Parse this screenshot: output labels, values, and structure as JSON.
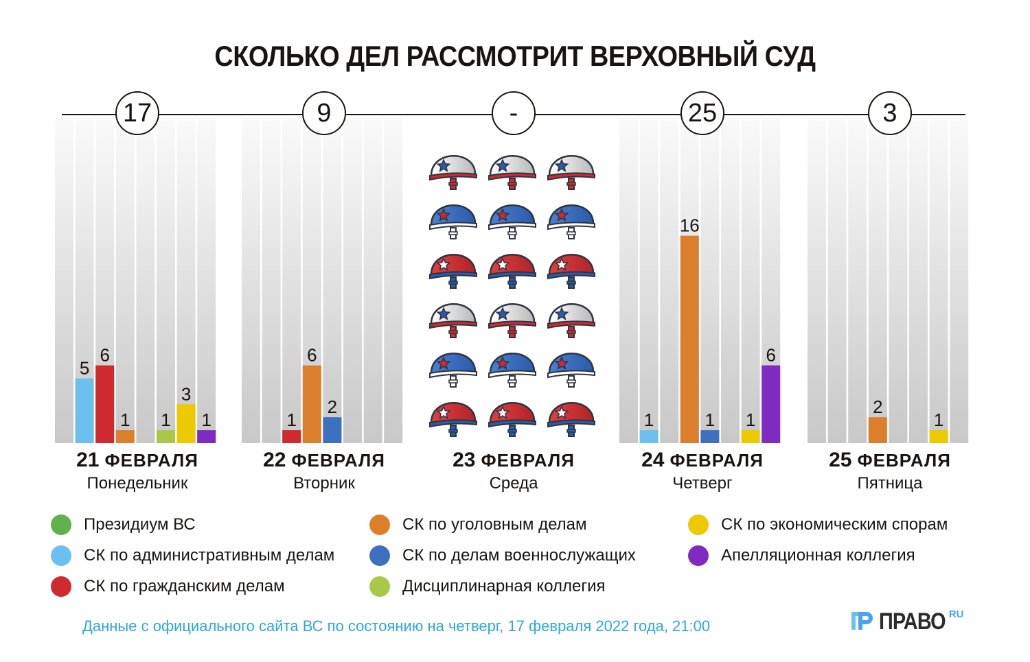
{
  "title": "СКОЛЬКО ДЕЛ РАССМОТРИТ ВЕРХОВНЫЙ СУД",
  "legend": [
    {
      "label": "Президиум ВС",
      "color": "#63b04f"
    },
    {
      "label": "СК по административным делам",
      "color": "#6cc0ef"
    },
    {
      "label": "СК по гражданским делам",
      "color": "#cf2a30"
    },
    {
      "label": "СК по уголовным делам",
      "color": "#dc7f2c"
    },
    {
      "label": "СК по делам военнослужащих",
      "color": "#3e70c0"
    },
    {
      "label": "Дисциплинарная коллегия",
      "color": "#a9c84a"
    },
    {
      "label": "СК по экономическим спорам",
      "color": "#ecc900"
    },
    {
      "label": "Апелляционная коллегия",
      "color": "#7f2ac0"
    }
  ],
  "days": [
    {
      "total": "17",
      "date_num": "21",
      "date_month": "ФЕВРАЛЯ",
      "weekday": "Понедельник",
      "values": [
        0,
        5,
        6,
        1,
        0,
        1,
        3,
        1
      ]
    },
    {
      "total": "9",
      "date_num": "22",
      "date_month": "ФЕВРАЛЯ",
      "weekday": "Вторник",
      "values": [
        0,
        0,
        1,
        6,
        2,
        0,
        0,
        0
      ]
    },
    {
      "total": "-",
      "date_num": "23",
      "date_month": "ФЕВРАЛЯ",
      "weekday": "Среда",
      "values": null,
      "icon": "military-helmet-icon"
    },
    {
      "total": "25",
      "date_num": "24",
      "date_month": "ФЕВРАЛЯ",
      "weekday": "Четверг",
      "values": [
        0,
        1,
        0,
        16,
        1,
        0,
        1,
        6
      ]
    },
    {
      "total": "3",
      "date_num": "25",
      "date_month": "ФЕВРАЛЯ",
      "weekday": "Пятница",
      "values": [
        0,
        0,
        0,
        2,
        0,
        0,
        1,
        0
      ]
    }
  ],
  "footnote": "Данные с официального сайта ВС по состоянию на четверг, 17 февраля 2022 года, 21:00",
  "logo": {
    "word": "ПРАВО",
    "suffix": "RU"
  },
  "chart_data": {
    "type": "bar",
    "title": "СКОЛЬКО ДЕЛ РАССМОТРИТ ВЕРХОВНЫЙ СУД",
    "categories": [
      "21 февраля",
      "22 февраля",
      "23 февраля",
      "24 февраля",
      "25 февраля"
    ],
    "totals": [
      17,
      9,
      null,
      25,
      3
    ],
    "series": [
      {
        "name": "Президиум ВС",
        "values": [
          0,
          0,
          null,
          0,
          0
        ]
      },
      {
        "name": "СК по административным делам",
        "values": [
          5,
          0,
          null,
          1,
          0
        ]
      },
      {
        "name": "СК по гражданским делам",
        "values": [
          6,
          1,
          null,
          0,
          0
        ]
      },
      {
        "name": "СК по уголовным делам",
        "values": [
          1,
          6,
          null,
          16,
          2
        ]
      },
      {
        "name": "СК по делам военнослужащих",
        "values": [
          0,
          2,
          null,
          1,
          0
        ]
      },
      {
        "name": "Дисциплинарная коллегия",
        "values": [
          1,
          0,
          null,
          0,
          0
        ]
      },
      {
        "name": "СК по экономическим спорам",
        "values": [
          3,
          0,
          null,
          1,
          1
        ]
      },
      {
        "name": "Апелляционная коллегия",
        "values": [
          1,
          0,
          null,
          6,
          0
        ]
      }
    ],
    "xlabel": "",
    "ylabel": "",
    "ylim": [
      0,
      25
    ],
    "grid": false,
    "legend_position": "bottom"
  }
}
